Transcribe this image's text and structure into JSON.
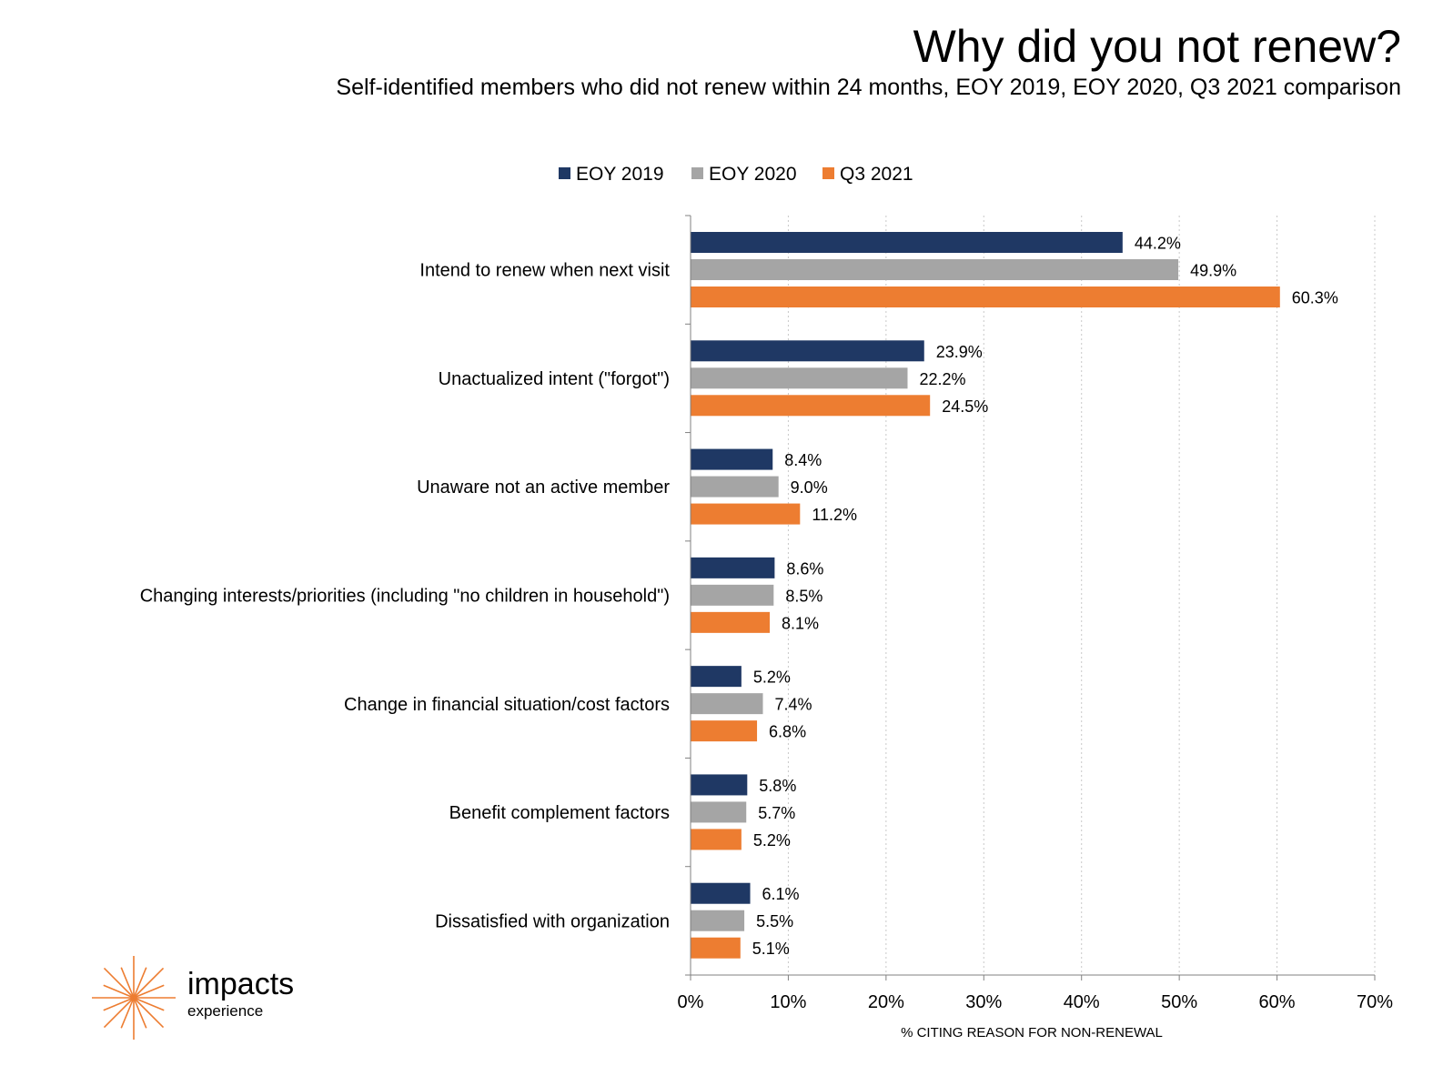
{
  "header": {
    "title": "Why did you not renew?",
    "subtitle": "Self-identified members who did not renew within 24 months, EOY 2019, EOY 2020, Q3 2021 comparison"
  },
  "legend": {
    "items": [
      {
        "label": "EOY 2019",
        "color": "#1f3864"
      },
      {
        "label": "EOY 2020",
        "color": "#a5a5a5"
      },
      {
        "label": "Q3 2021",
        "color": "#ed7d31"
      }
    ]
  },
  "logo": {
    "word": "impacts",
    "sub": "experience",
    "color": "#ed7d31"
  },
  "chart_data": {
    "type": "bar",
    "orientation": "horizontal",
    "categories": [
      "Intend to renew when next visit",
      "Unactualized intent (\"forgot\")",
      "Unaware not an active member",
      "Changing interests/priorities (including \"no children in household\")",
      "Change in financial situation/cost factors",
      "Benefit complement factors",
      "Dissatisfied with organization"
    ],
    "series": [
      {
        "name": "EOY 2019",
        "color": "#1f3864",
        "values": [
          44.2,
          23.9,
          8.4,
          8.6,
          5.2,
          5.8,
          6.1
        ],
        "labels": [
          "44.2%",
          "23.9%",
          "8.4%",
          "8.6%",
          "5.2%",
          "5.8%",
          "6.1%"
        ]
      },
      {
        "name": "EOY 2020",
        "color": "#a5a5a5",
        "values": [
          49.9,
          22.2,
          9.0,
          8.5,
          7.4,
          5.7,
          5.5
        ],
        "labels": [
          "49.9%",
          "22.2%",
          "9.0%",
          "8.5%",
          "7.4%",
          "5.7%",
          "5.5%"
        ]
      },
      {
        "name": "Q3 2021",
        "color": "#ed7d31",
        "values": [
          60.3,
          24.5,
          11.2,
          8.1,
          6.8,
          5.2,
          5.1
        ],
        "labels": [
          "60.3%",
          "24.5%",
          "11.2%",
          "8.1%",
          "6.8%",
          "5.2%",
          "5.1%"
        ]
      }
    ],
    "xlabel": "% CITING REASON FOR NON-RENEWAL",
    "xlim": [
      0,
      70
    ],
    "xticks": [
      0,
      10,
      20,
      30,
      40,
      50,
      60,
      70
    ],
    "xtick_labels": [
      "0%",
      "10%",
      "20%",
      "30%",
      "40%",
      "50%",
      "60%",
      "70%"
    ],
    "grid": "vertical dotted",
    "legend_position": "top"
  }
}
